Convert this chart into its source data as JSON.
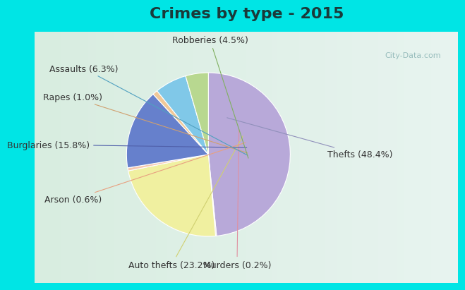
{
  "title": "Crimes by type - 2015",
  "slices": [
    {
      "label": "Thefts (48.4%)",
      "value": 48.4,
      "color": "#b8a9d9"
    },
    {
      "label": "Murders (0.2%)",
      "value": 0.2,
      "color": "#e8b8c8"
    },
    {
      "label": "Auto thefts (23.2%)",
      "value": 23.2,
      "color": "#f0f0a0"
    },
    {
      "label": "Arson (0.6%)",
      "value": 0.6,
      "color": "#f5c8b0"
    },
    {
      "label": "Burglaries (15.8%)",
      "value": 15.8,
      "color": "#6680cc"
    },
    {
      "label": "Rapes (1.0%)",
      "value": 1.0,
      "color": "#f0c898"
    },
    {
      "label": "Assaults (6.3%)",
      "value": 6.3,
      "color": "#80c8e8"
    },
    {
      "label": "Robberies (4.5%)",
      "value": 4.5,
      "color": "#b8d890"
    }
  ],
  "background_cyan": "#00e5e5",
  "title_fontsize": 16,
  "label_fontsize": 9
}
